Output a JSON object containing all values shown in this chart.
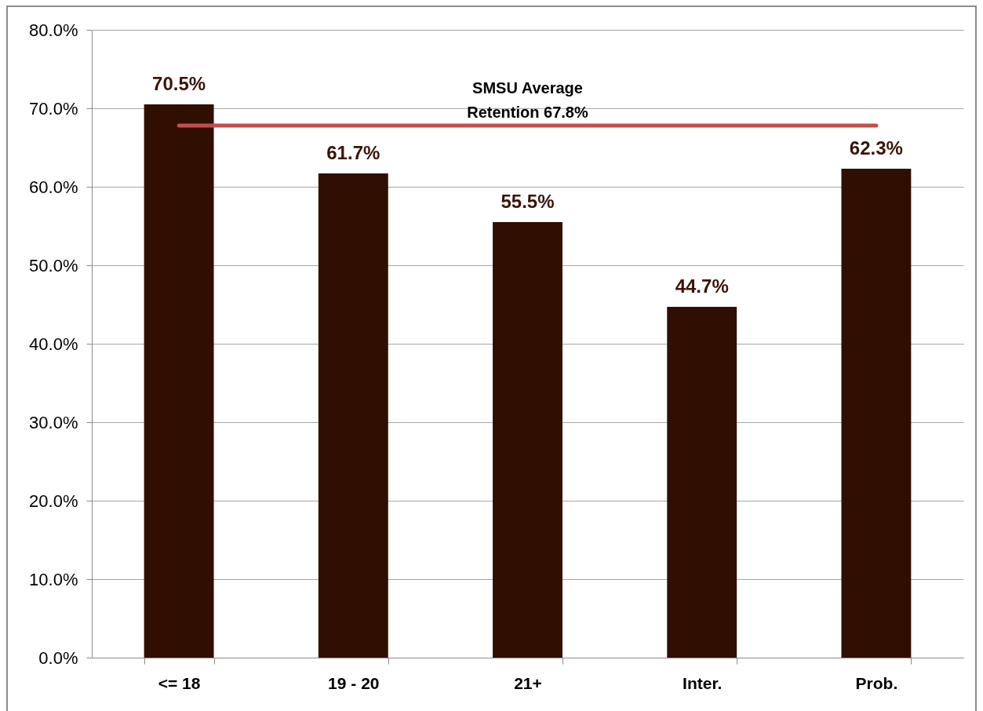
{
  "chart_data": {
    "type": "bar",
    "categories": [
      "<= 18",
      "19 - 20",
      "21+",
      "Inter.",
      "Prob."
    ],
    "values": [
      70.5,
      61.7,
      55.5,
      44.7,
      62.3
    ],
    "color": "#300e02",
    "value_labels": [
      "70.5%",
      "61.7%",
      "55.5%",
      "44.7%",
      "62.3%"
    ],
    "ylim": [
      0,
      80
    ],
    "yticks": [
      {
        "value": 0,
        "label": "0.0%"
      },
      {
        "value": 10,
        "label": "10.0%"
      },
      {
        "value": 20,
        "label": "20.0%"
      },
      {
        "value": 30,
        "label": "30.0%"
      },
      {
        "value": 40,
        "label": "40.0%"
      },
      {
        "value": 50,
        "label": "50.0%"
      },
      {
        "value": 60,
        "label": "60.0%"
      },
      {
        "value": 70,
        "label": "70.0%"
      },
      {
        "value": 80,
        "label": "80.0%"
      }
    ],
    "grid": "y",
    "ref_lines": [
      {
        "axis": "y",
        "value": 67.8,
        "label": "SMSU Average Retention 67.8%",
        "color": "#c0504d"
      }
    ]
  }
}
